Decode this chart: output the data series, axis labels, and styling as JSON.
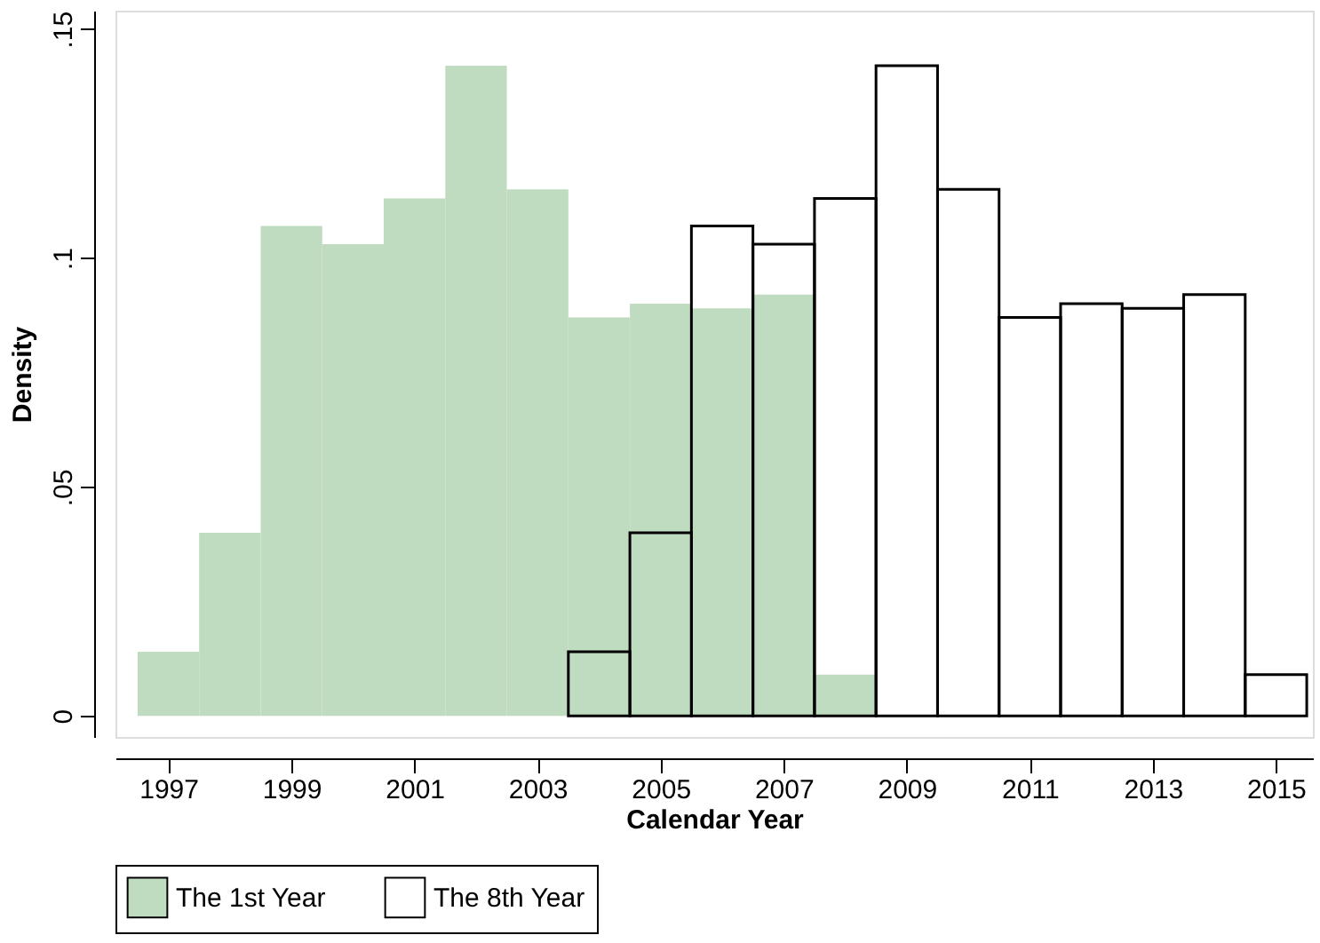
{
  "chart_data": {
    "type": "histogram",
    "xlabel": "Calendar Year",
    "ylabel": "Density",
    "xlim": [
      1996.14,
      2015.6
    ],
    "xticks": [
      1997,
      1999,
      2001,
      2003,
      2005,
      2007,
      2009,
      2011,
      2013,
      2015
    ],
    "ylim": [
      -0.0046,
      0.154
    ],
    "yticks": [
      0,
      {
        "value": 0.05,
        "label": ".05"
      },
      {
        "value": 0.1,
        "label": ".1"
      },
      {
        "value": 0.15,
        "label": ".15"
      }
    ],
    "grid": false,
    "legend": "bottom",
    "bins": [
      1996.5,
      1997.5,
      1998.5,
      1999.5,
      2000.5,
      2001.5,
      2002.5,
      2003.5,
      2004.5,
      2005.5,
      2006.5,
      2007.5,
      2008.5,
      2009.5,
      2010.5,
      2011.5,
      2012.5,
      2013.5,
      2014.5,
      2015.5
    ],
    "series": [
      {
        "name": "The 1st Year",
        "color": "#c0dcc0",
        "values": [
          0.014,
          0.04,
          0.107,
          0.103,
          0.113,
          0.142,
          0.115,
          0.087,
          0.09,
          0.089,
          0.092,
          0.009,
          null,
          null,
          null,
          null,
          null,
          null,
          null
        ]
      },
      {
        "name": "The 8th Year",
        "color": "#000000",
        "values": [
          null,
          null,
          null,
          null,
          null,
          null,
          null,
          0.014,
          0.04,
          0.107,
          0.103,
          0.113,
          0.142,
          0.115,
          0.087,
          0.09,
          0.089,
          0.092,
          0.009
        ]
      }
    ]
  }
}
